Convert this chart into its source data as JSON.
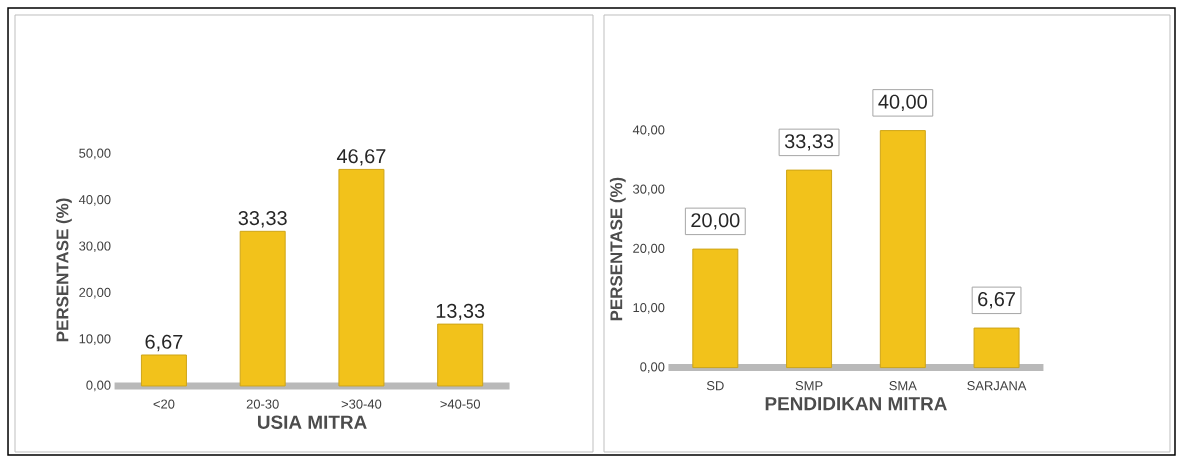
{
  "chart_data": [
    {
      "type": "bar",
      "xlabel": "USIA MITRA",
      "ylabel": "PERSENTASE (%)",
      "categories": [
        "<20",
        "20-30",
        ">30-40",
        ">40-50"
      ],
      "values": [
        6.67,
        33.33,
        46.67,
        13.33
      ],
      "value_labels": [
        "6,67",
        "33,33",
        "46,67",
        "13,33"
      ],
      "color": "#f2c21b",
      "ylim": [
        0,
        50
      ],
      "yticks": [
        {
          "value": 0,
          "label": "0,00"
        },
        {
          "value": 10,
          "label": "10,00"
        },
        {
          "value": 20,
          "label": "20,00"
        },
        {
          "value": 30,
          "label": "30,00"
        },
        {
          "value": 40,
          "label": "40,00"
        },
        {
          "value": 50,
          "label": "50,00"
        }
      ]
    },
    {
      "type": "bar",
      "xlabel": "PENDIDIKAN MITRA",
      "ylabel": "PERSENTASE  (%)",
      "categories": [
        "SD",
        "SMP",
        "SMA",
        "SARJANA"
      ],
      "values": [
        20.0,
        33.33,
        40.0,
        6.67
      ],
      "value_labels": [
        "20,00",
        "33,33",
        "40,00",
        "6,67"
      ],
      "color": "#f2c21b",
      "ylim": [
        0,
        40
      ],
      "yticks": [
        {
          "value": 0,
          "label": "0,00"
        },
        {
          "value": 10,
          "label": "10,00"
        },
        {
          "value": 20,
          "label": "20,00"
        },
        {
          "value": 30,
          "label": "30,00"
        },
        {
          "value": 40,
          "label": "40,00"
        }
      ]
    }
  ]
}
